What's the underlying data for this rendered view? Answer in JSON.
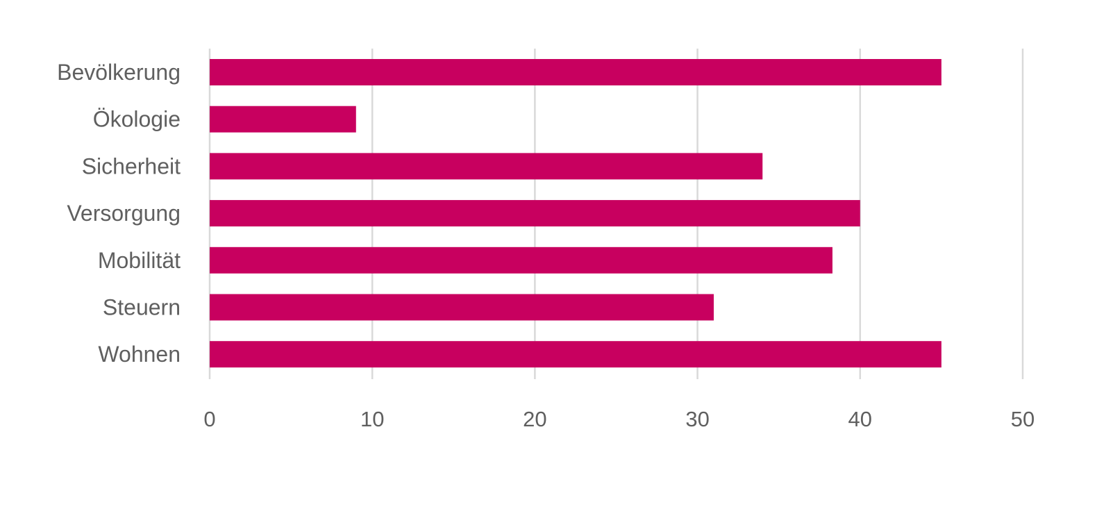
{
  "chart_data": {
    "type": "bar",
    "orientation": "horizontal",
    "categories": [
      "Bevölkerung",
      "Ökologie",
      "Sicherheit",
      "Versorgung",
      "Mobilität",
      "Steuern",
      "Wohnen"
    ],
    "values": [
      45,
      9,
      34,
      40,
      38.3,
      31,
      45
    ],
    "xlim": [
      0,
      50
    ],
    "xticks": [
      "0",
      "10",
      "20",
      "30",
      "40",
      "50"
    ],
    "grid": true,
    "legend": "none",
    "title": "",
    "xlabel": "",
    "ylabel": "",
    "bar_color": "#c8005f",
    "grid_color": "#d9d9d9"
  }
}
